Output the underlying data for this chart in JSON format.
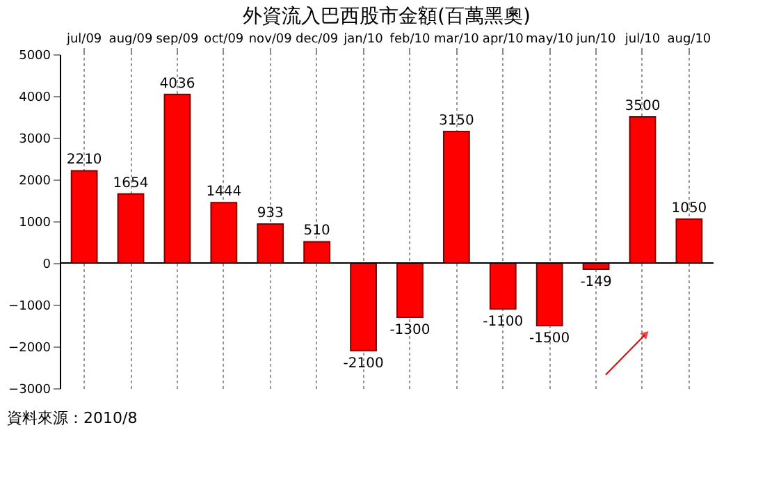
{
  "chart_data": {
    "type": "bar",
    "title": "外資流入巴西股市金額(百萬黑奧)",
    "categories": [
      "jul/09",
      "aug/09",
      "sep/09",
      "oct/09",
      "nov/09",
      "dec/09",
      "jan/10",
      "feb/10",
      "mar/10",
      "apr/10",
      "may/10",
      "jun/10",
      "jul/10",
      "aug/10"
    ],
    "values": [
      2210,
      1654,
      4036,
      1444,
      933,
      510,
      -2100,
      -1300,
      3150,
      -1100,
      -1500,
      -149,
      3500,
      1050
    ],
    "color": "#ff0000",
    "ylim": [
      -3000,
      5000
    ],
    "yticks": [
      -3000,
      -2000,
      -1000,
      0,
      1000,
      2000,
      3000,
      4000,
      5000
    ],
    "grid": "x",
    "data_labels": true,
    "annotations": [
      "資料來源：2010/8"
    ]
  }
}
